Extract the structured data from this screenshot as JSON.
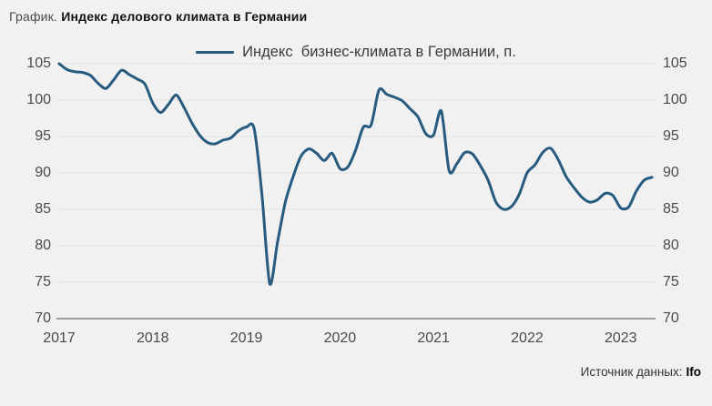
{
  "header": {
    "title_prefix": "График.",
    "title_main": "Индекс делового климата в Германии"
  },
  "legend": {
    "label": "Индекс  бизнес-климата в Германии, п."
  },
  "source": {
    "prefix": "Источник данных:",
    "value": "Ifo"
  },
  "chart_data": {
    "type": "line",
    "series_name": "Индекс бизнес-климата в Германии, п.",
    "x_unit": "monthly",
    "x_tick_labels": [
      "2017",
      "2018",
      "2019",
      "2020",
      "2021",
      "2022",
      "2023"
    ],
    "x_tick_month_indices": [
      0,
      12,
      24,
      36,
      48,
      60,
      72
    ],
    "ylim": [
      70,
      105
    ],
    "y_ticks": [
      105,
      100,
      95,
      90,
      85,
      80,
      75,
      70
    ],
    "values": [
      105.0,
      104.2,
      103.9,
      103.8,
      103.4,
      102.3,
      101.6,
      102.8,
      104.1,
      103.5,
      102.9,
      102.2,
      99.6,
      98.3,
      99.4,
      100.7,
      99.0,
      96.9,
      95.2,
      94.2,
      94.0,
      94.5,
      94.8,
      95.8,
      96.3,
      96.1,
      87.0,
      74.8,
      80.5,
      86.0,
      89.5,
      92.3,
      93.3,
      92.7,
      91.7,
      92.7,
      90.6,
      90.8,
      93.1,
      96.3,
      96.6,
      101.4,
      100.8,
      100.4,
      99.9,
      98.8,
      97.7,
      95.4,
      95.2,
      98.5,
      90.3,
      91.3,
      92.8,
      92.6,
      91.0,
      89.0,
      86.0,
      85.0,
      85.4,
      87.1,
      90.0,
      91.1,
      92.8,
      93.4,
      91.8,
      89.5,
      88.0,
      86.7,
      86.0,
      86.3,
      87.2,
      86.9,
      85.2,
      85.3,
      87.5,
      89.0,
      89.4
    ],
    "line_color": "#275a7f",
    "background_color": "#f1f1f2",
    "grid_color": "#e4e4e4",
    "axis_color": "#9c9c9c",
    "label_color": "#4a4a4a",
    "grid": true,
    "legend_position": "top-center"
  }
}
